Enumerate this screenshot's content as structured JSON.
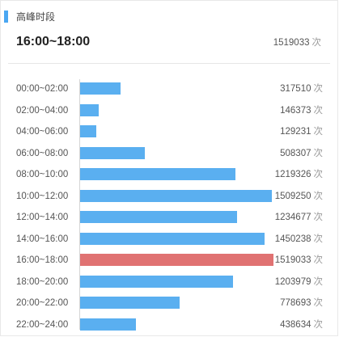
{
  "header": {
    "section_title": "高峰时段",
    "peak_range": "16:00~18:00",
    "peak_count": "1519033",
    "unit": "次"
  },
  "colors": {
    "accent": "#4aa7f2",
    "bar": "#5aaff0",
    "bar_highlight": "#e07272"
  },
  "chart_data": {
    "type": "bar",
    "orientation": "horizontal",
    "categories": [
      "00:00~02:00",
      "02:00~04:00",
      "04:00~06:00",
      "06:00~08:00",
      "08:00~10:00",
      "10:00~12:00",
      "12:00~14:00",
      "14:00~16:00",
      "16:00~18:00",
      "18:00~20:00",
      "20:00~22:00",
      "22:00~24:00"
    ],
    "values": [
      317510,
      146373,
      129231,
      508307,
      1219326,
      1509250,
      1234677,
      1450238,
      1519033,
      1203979,
      778693,
      438634
    ],
    "value_labels": [
      "317510",
      "146373",
      "129231",
      "508307",
      "1219326",
      "1509250",
      "1234677",
      "1450238",
      "1519033",
      "1203979",
      "778693",
      "438634"
    ],
    "unit": "次",
    "highlight_index": 8,
    "xlim": [
      0,
      1519033
    ],
    "grid": false
  }
}
